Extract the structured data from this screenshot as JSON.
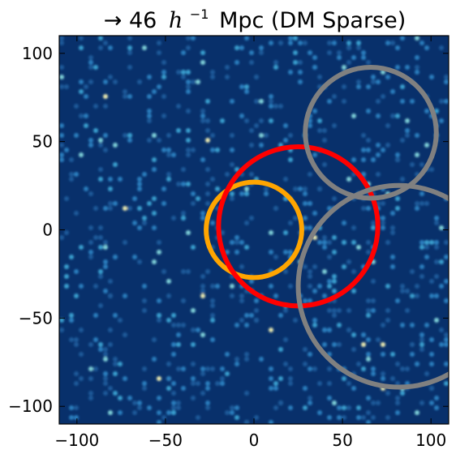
{
  "chart_data": {
    "type": "heatmap",
    "title_prefix": "→ 46",
    "title_math": "h",
    "title_exp": "−1",
    "title_suffix": "Mpc (DM Sparse)",
    "xlim": [
      -110,
      110
    ],
    "ylim": [
      -110,
      110
    ],
    "xticks": [
      -100,
      -50,
      0,
      50,
      100
    ],
    "yticks": [
      -100,
      -50,
      0,
      50,
      100
    ],
    "xtick_labels": [
      "−100",
      "−50",
      "0",
      "50",
      "100"
    ],
    "ytick_labels": [
      "−100",
      "−50",
      "0",
      "50",
      "100"
    ],
    "grid": false,
    "background_color": "#08306b",
    "point_colors": [
      "#1f5a9a",
      "#2b7fbf",
      "#3aa0d0",
      "#7fd0d8",
      "#e8e8b0"
    ],
    "circles": [
      {
        "label": "orange",
        "cx": 0,
        "cy": 0,
        "r": 27,
        "color": "#ffa500"
      },
      {
        "label": "red",
        "cx": 25,
        "cy": 2,
        "r": 45,
        "color": "#ff0000"
      },
      {
        "label": "gray-top",
        "cx": 66,
        "cy": 55,
        "r": 37,
        "color": "#808080"
      },
      {
        "label": "gray-bottom",
        "cx": 82,
        "cy": -32,
        "r": 57,
        "color": "#808080"
      }
    ]
  }
}
